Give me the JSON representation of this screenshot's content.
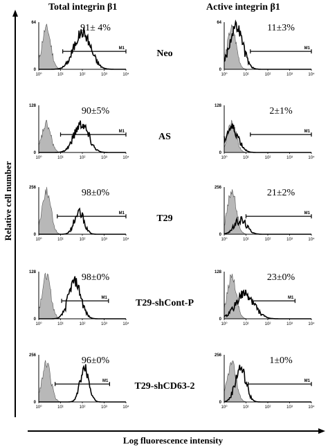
{
  "chart_data": {
    "type": "histogram-grid",
    "column_titles": [
      "Total integrin β1",
      "Active integrin β1"
    ],
    "xlabel": "Log fluorescence intensity",
    "ylabel": "Relative cell number",
    "x_scale": "log",
    "x_ticks": [
      "10⁰",
      "10¹",
      "10²",
      "10³",
      "10⁴"
    ],
    "gate_label": "M1",
    "rows": [
      {
        "condition": "Neo",
        "total": {
          "ymax": "64",
          "ytick_min": "0",
          "percent": "91± 4%",
          "peak_log": 2.0,
          "width": 0.38,
          "height": 0.78,
          "gate": [
            1.1,
            4.0
          ]
        },
        "active": {
          "ymax": "64",
          "ytick_min": "0",
          "percent": "11±3%",
          "peak_log": 0.55,
          "width": 0.3,
          "height": 0.92,
          "gate": [
            1.2,
            4.0
          ]
        }
      },
      {
        "condition": "AS",
        "total": {
          "ymax": "128",
          "ytick_min": "0",
          "percent": "90±5%",
          "peak_log": 1.95,
          "width": 0.33,
          "height": 0.62,
          "gate": [
            1.0,
            4.0
          ]
        },
        "active": {
          "ymax": "128",
          "ytick_min": "0",
          "percent": "2±1%",
          "peak_log": 0.35,
          "width": 0.3,
          "height": 0.52,
          "gate": [
            1.2,
            4.0
          ]
        }
      },
      {
        "condition": "T29",
        "total": {
          "ymax": "256",
          "ytick_min": "0",
          "percent": "98±0%",
          "peak_log": 1.85,
          "width": 0.22,
          "height": 0.45,
          "gate": [
            0.85,
            4.0
          ]
        },
        "active": {
          "ymax": "256",
          "ytick_min": "0",
          "percent": "21±2%",
          "peak_log": 0.75,
          "width": 0.28,
          "height": 0.3,
          "gate": [
            1.0,
            4.0
          ]
        }
      },
      {
        "condition": "T29-shCont-P",
        "total": {
          "ymax": "128",
          "ytick_min": "0",
          "percent": "98±0%",
          "peak_log": 1.65,
          "width": 0.28,
          "height": 0.8,
          "gate": [
            1.05,
            3.2
          ]
        },
        "active": {
          "ymax": "128",
          "ytick_min": "0",
          "percent": "23±0%",
          "peak_log": 0.95,
          "width": 0.42,
          "height": 0.52,
          "gate": [
            1.3,
            3.25
          ]
        }
      },
      {
        "condition": "T29-shCD63-2",
        "total": {
          "ymax": "256",
          "ytick_min": "0",
          "percent": "96±0%",
          "peak_log": 2.1,
          "width": 0.2,
          "height": 0.72,
          "gate": [
            0.75,
            3.25
          ]
        },
        "active": {
          "ymax": "256",
          "ytick_min": "0",
          "percent": "1±0%",
          "peak_log": 0.75,
          "width": 0.24,
          "height": 0.72,
          "gate": [
            1.1,
            4.0
          ]
        }
      }
    ],
    "control": {
      "peak_log": 0.35,
      "width": 0.2,
      "heights": [
        0.88,
        0.6,
        0.92,
        0.92,
        0.82
      ],
      "fill": "#b8b8b8"
    }
  }
}
